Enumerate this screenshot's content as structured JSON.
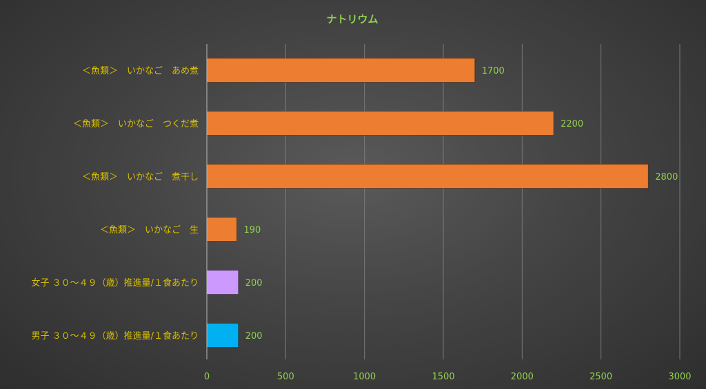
{
  "chart_data": {
    "type": "bar",
    "orientation": "horizontal",
    "title": "ナトリウム",
    "categories": [
      "＜魚類＞　いかなご　あめ煮",
      "＜魚類＞　いかなご　つくだ煮",
      "＜魚類＞　いかなご　煮干し",
      "＜魚類＞　いかなご　生",
      "女子 ３０～４９（歳）推進量/１食あたり",
      "男子 ３０～４９（歳）推進量/１食あたり"
    ],
    "values": [
      1700,
      2200,
      2800,
      190,
      200,
      200
    ],
    "value_labels": [
      "1700",
      "2200",
      "2800",
      "190",
      "200",
      "200"
    ],
    "bar_colors": [
      "#ed7d31",
      "#ed7d31",
      "#ed7d31",
      "#ed7d31",
      "#cc99ff",
      "#00b0f0"
    ],
    "xlim": [
      0,
      3000
    ],
    "xticks": [
      0,
      500,
      1000,
      1500,
      2000,
      2500,
      3000
    ],
    "xtick_labels": [
      "0",
      "500",
      "1000",
      "1500",
      "2000",
      "2500",
      "3000"
    ],
    "grid": true,
    "legend": "none",
    "colors": {
      "title": "#92d050",
      "category_labels": "#d9c000",
      "tick_labels": "#92d050"
    }
  }
}
